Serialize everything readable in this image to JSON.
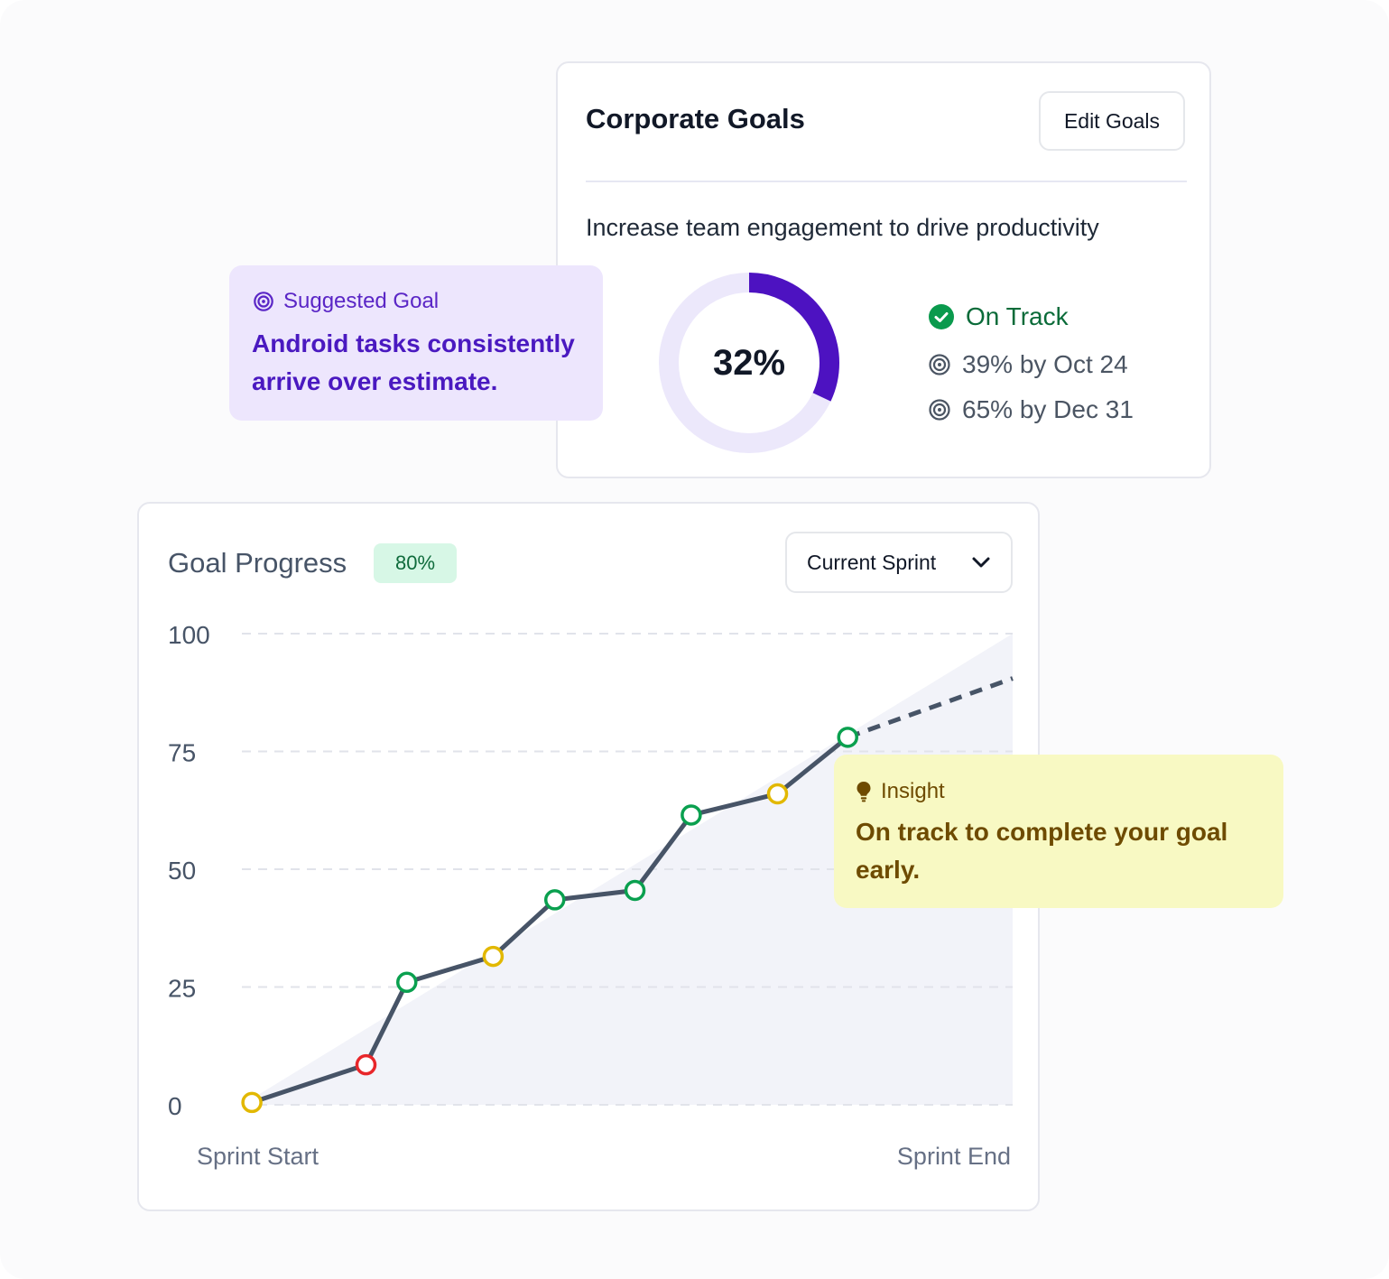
{
  "corporate_goals": {
    "title": "Corporate Goals",
    "edit_label": "Edit Goals",
    "goal_description": "Increase team engagement to drive productivity",
    "progress_value": 32,
    "progress_label": "32%",
    "status": "On Track",
    "targets": [
      "39% by Oct 24",
      "65% by Dec 31"
    ],
    "colors": {
      "progress": "#4d12c1",
      "track": "#ece8fb",
      "on_track": "#0a9a4d"
    }
  },
  "suggested_goal": {
    "heading": "Suggested Goal",
    "text": "Android tasks consistently arrive over estimate.",
    "icon": "target-icon"
  },
  "goal_progress": {
    "title": "Goal Progress",
    "badge": "80%",
    "dropdown": {
      "selected": "Current Sprint"
    }
  },
  "insight": {
    "heading": "Insight",
    "text": "On track to complete your goal early.",
    "icon": "lightbulb-icon"
  },
  "chart_data": {
    "type": "line",
    "title": "",
    "xlabel": "",
    "ylabel": "",
    "ylim": [
      0,
      100
    ],
    "yticks": [
      0,
      25,
      50,
      75,
      100
    ],
    "x_labels": {
      "start": "Sprint Start",
      "end": "Sprint End"
    },
    "x_range": [
      0,
      1
    ],
    "grid": true,
    "target_area": {
      "x": [
        0,
        1
      ],
      "y": [
        0,
        100
      ]
    },
    "series": [
      {
        "values": [
          {
            "x": 0.013,
            "y": 0.5,
            "status": "warning"
          },
          {
            "x": 0.161,
            "y": 8.5,
            "status": "risk"
          },
          {
            "x": 0.214,
            "y": 26,
            "status": "good"
          },
          {
            "x": 0.326,
            "y": 31.5,
            "status": "warning"
          },
          {
            "x": 0.406,
            "y": 43.5,
            "status": "good"
          },
          {
            "x": 0.51,
            "y": 45.5,
            "status": "good"
          },
          {
            "x": 0.583,
            "y": 61.5,
            "status": "good"
          },
          {
            "x": 0.695,
            "y": 66,
            "status": "warning"
          },
          {
            "x": 0.786,
            "y": 78,
            "status": "good"
          }
        ]
      }
    ],
    "projection": [
      {
        "x": 0.786,
        "y": 78
      },
      {
        "x": 1.0,
        "y": 90.5
      }
    ],
    "colors": {
      "line": "#475467",
      "area": "#f2f3f9",
      "good": "#0aa04f",
      "warning": "#e2b800",
      "risk": "#e8262a",
      "grid": "#e1e3ea"
    }
  }
}
